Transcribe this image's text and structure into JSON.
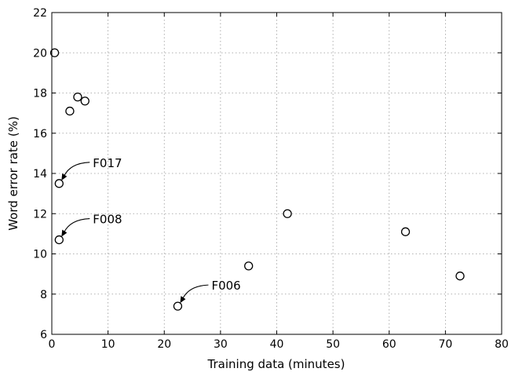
{
  "chart_data": {
    "type": "scatter",
    "xlabel": "Training data (minutes)",
    "ylabel": "Word error rate (%)",
    "xlim": [
      0,
      80
    ],
    "ylim": [
      6,
      22
    ],
    "xticks": [
      0,
      10,
      20,
      30,
      40,
      50,
      60,
      70,
      80
    ],
    "yticks": [
      6,
      8,
      10,
      12,
      14,
      16,
      18,
      20,
      22
    ],
    "grid": true,
    "points": [
      {
        "x": 0.5,
        "y": 20.0
      },
      {
        "x": 3.2,
        "y": 17.1
      },
      {
        "x": 4.6,
        "y": 17.8
      },
      {
        "x": 5.9,
        "y": 17.6
      },
      {
        "x": 1.3,
        "y": 13.5
      },
      {
        "x": 1.3,
        "y": 10.7
      },
      {
        "x": 22.4,
        "y": 7.4
      },
      {
        "x": 35.0,
        "y": 9.4
      },
      {
        "x": 41.9,
        "y": 12.0
      },
      {
        "x": 62.9,
        "y": 11.1
      },
      {
        "x": 72.6,
        "y": 8.9
      }
    ],
    "annotations": [
      {
        "label": "F017",
        "x": 1.3,
        "y": 13.5
      },
      {
        "label": "F008",
        "x": 1.3,
        "y": 10.7
      },
      {
        "label": "F006",
        "x": 22.4,
        "y": 7.4
      }
    ]
  }
}
